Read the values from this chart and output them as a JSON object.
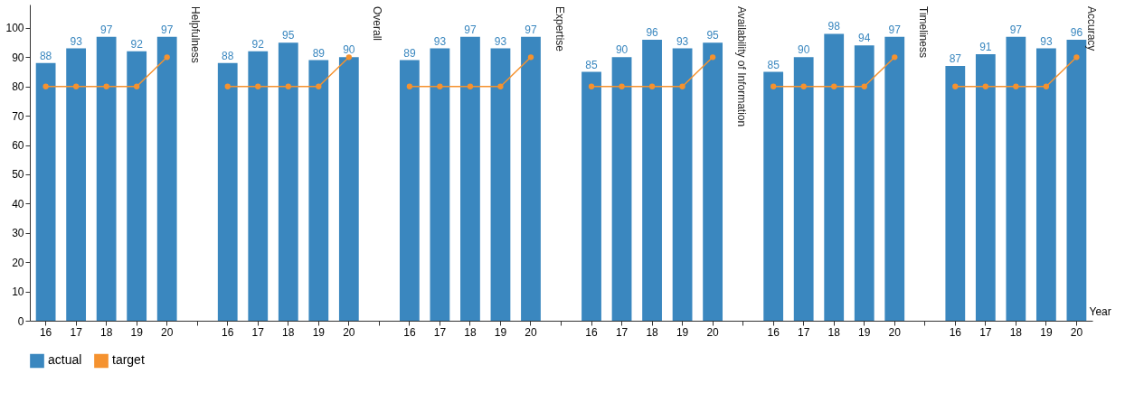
{
  "chart_data": {
    "type": "bar",
    "xlabel": "Year",
    "categories": [
      "16",
      "17",
      "18",
      "19",
      "20",
      null,
      "16",
      "17",
      "18",
      "19",
      "20",
      null,
      "16",
      "17",
      "18",
      "19",
      "20",
      null,
      "16",
      "17",
      "18",
      "19",
      "20",
      null,
      "16",
      "17",
      "18",
      "19",
      "20",
      null,
      "16",
      "17",
      "18",
      "19",
      "20"
    ],
    "ylim": [
      0,
      108
    ],
    "yticks": [
      0,
      10,
      20,
      30,
      40,
      50,
      60,
      70,
      80,
      90,
      100
    ],
    "grid": false,
    "marker": "circle",
    "legend": "bottom",
    "annotations": [
      "Helpfulness",
      "Overall",
      "Expertise",
      "Availability of Information",
      "Timeliness",
      "Accuracy"
    ],
    "series": [
      {
        "name": "actual",
        "color": "#3a87bf",
        "values": [
          88,
          93,
          97,
          92,
          97,
          null,
          88,
          92,
          95,
          89,
          90,
          null,
          89,
          93,
          97,
          93,
          97,
          null,
          85,
          90,
          96,
          93,
          95,
          null,
          85,
          90,
          98,
          94,
          97,
          null,
          87,
          91,
          97,
          93,
          96
        ],
        "value_labels": [
          "88",
          "93",
          "97",
          "92",
          "97",
          null,
          "88",
          "92",
          "95",
          "89",
          "90",
          null,
          "89",
          "93",
          "97",
          "93",
          "97",
          null,
          "85",
          "90",
          "96",
          "93",
          "95",
          null,
          "85",
          "90",
          "98",
          "94",
          "97",
          null,
          "87",
          "91",
          "97",
          "93",
          "96"
        ]
      },
      {
        "name": "target",
        "type": "line",
        "color": "#f5922f",
        "values": [
          80,
          80,
          80,
          80,
          90,
          null,
          80,
          80,
          80,
          80,
          90,
          null,
          80,
          80,
          80,
          80,
          90,
          null,
          80,
          80,
          80,
          80,
          90,
          null,
          80,
          80,
          80,
          80,
          90,
          null,
          80,
          80,
          80,
          80,
          90
        ]
      }
    ]
  }
}
